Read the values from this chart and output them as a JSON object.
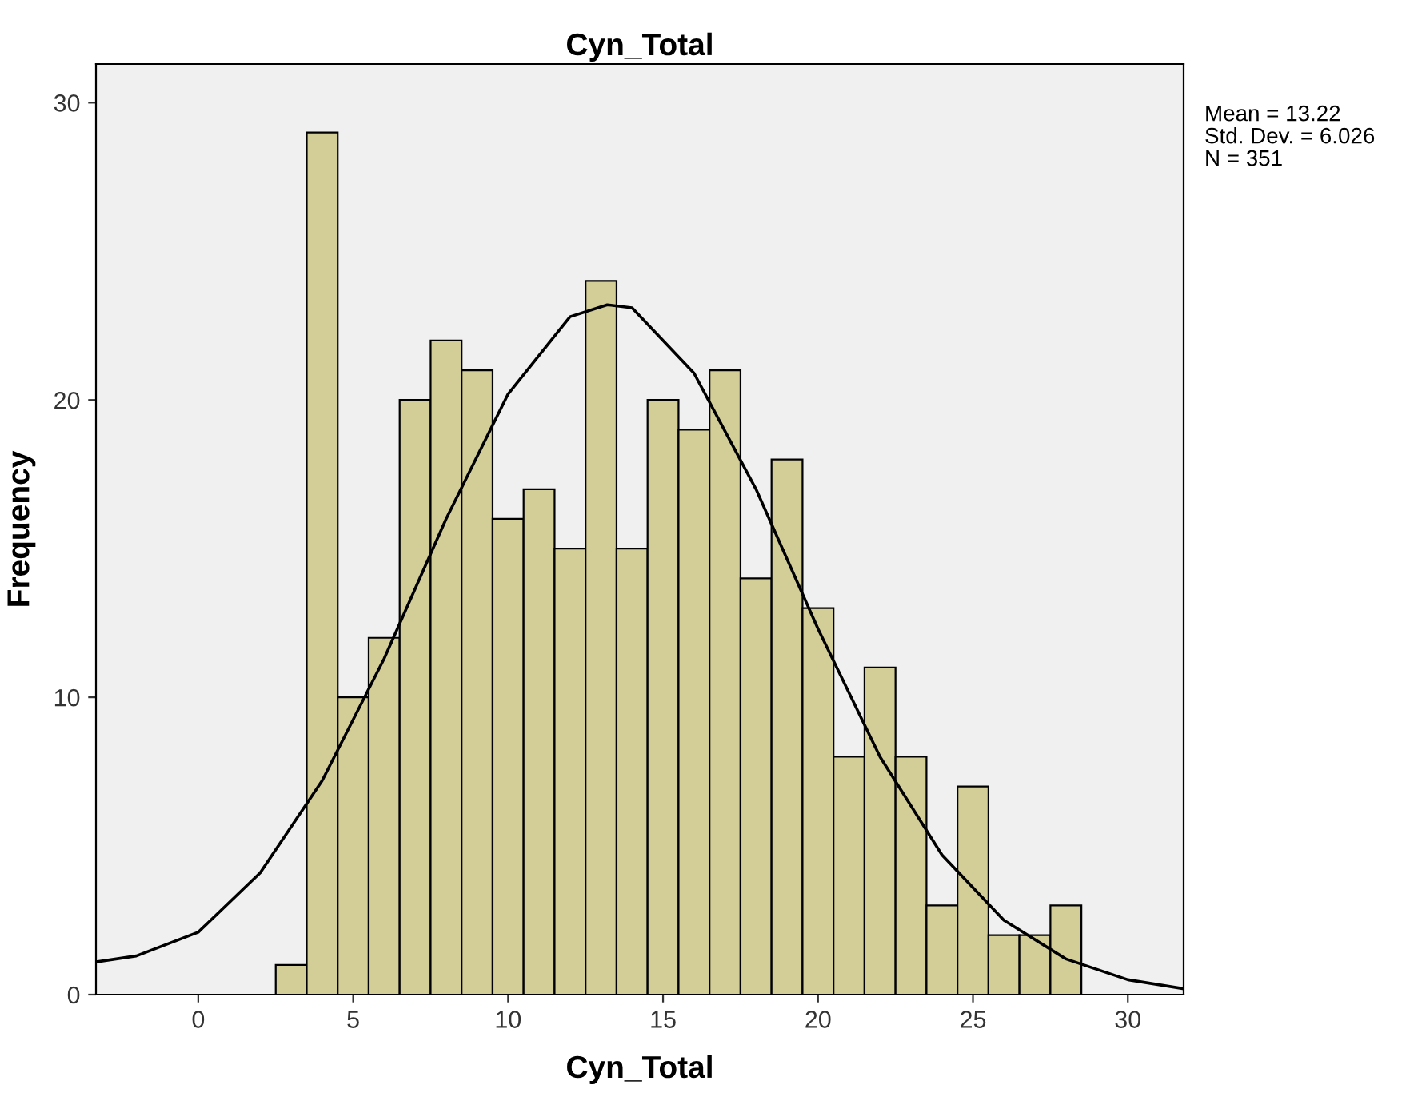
{
  "chart_data": {
    "type": "histogram",
    "title": "Cyn_Total",
    "xlabel": "Cyn_Total",
    "ylabel": "Frequency",
    "bins": [
      2.5,
      3.5,
      4.5,
      5.5,
      6.5,
      7.5,
      8.5,
      9.5,
      10.5,
      11.5,
      12.5,
      13.5,
      14.5,
      15.5,
      16.5,
      17.5,
      18.5,
      19.5,
      20.5,
      21.5,
      22.5,
      23.5,
      24.5,
      25.5,
      26.5,
      27.5,
      28.5
    ],
    "values": [
      1,
      29,
      10,
      12,
      20,
      22,
      21,
      16,
      17,
      15,
      24,
      15,
      20,
      19,
      21,
      14,
      18,
      13,
      8,
      11,
      8,
      3,
      7,
      2,
      2,
      3
    ],
    "color": "#d3ce97",
    "series": [
      {
        "type": "line",
        "color": "#000000",
        "x": [
          -3.3,
          -2,
          0,
          2,
          4,
          6,
          8,
          10,
          12,
          13.2,
          14,
          16,
          18,
          20,
          22,
          24,
          26,
          28,
          30,
          31.8
        ],
        "values": [
          1.1,
          1.3,
          2.1,
          4.1,
          7.2,
          11.3,
          16.0,
          20.2,
          22.8,
          23.2,
          23.1,
          20.9,
          17.0,
          12.3,
          8.0,
          4.7,
          2.5,
          1.2,
          0.5,
          0.2
        ]
      }
    ],
    "xlim": [
      -3.3,
      31.8
    ],
    "xticks": [
      0,
      5,
      10,
      15,
      20,
      25,
      30
    ],
    "ylim": [
      0,
      31.3
    ],
    "yticks": [
      0,
      10,
      20,
      30
    ],
    "grid": false,
    "annotations": [
      "Mean = 13.22",
      "Std. Dev. = 6.026",
      "N = 351"
    ]
  }
}
